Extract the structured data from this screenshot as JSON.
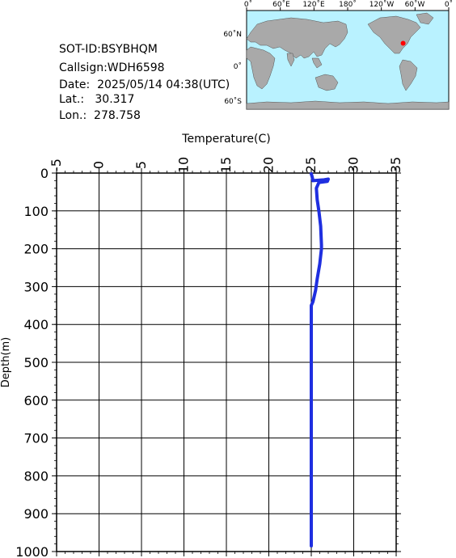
{
  "meta": {
    "sot_id": "SOT-ID:BSYBHQM",
    "callsign": "Callsign:WDH6598",
    "date": "Date:  2025/05/14 04:38(UTC)",
    "lat": "Lat.:   30.317",
    "lon": "Lon.:  278.758"
  },
  "map": {
    "lon_labels": [
      "0˚",
      "60˚E",
      "120˚E",
      "180˚",
      "120˚W",
      "60˚W",
      "0˚"
    ],
    "lat_labels": [
      "60˚N",
      "0˚",
      "60˚S"
    ],
    "marker": {
      "lat": 30.317,
      "lon": 278.758
    },
    "ocean_color": "#b9f2ff",
    "land_color": "#a9a9a9",
    "marker_color": "#ff0000"
  },
  "chart_data": {
    "type": "line",
    "title": "",
    "xlabel": "Temperature(C)",
    "ylabel": "Depth(m)",
    "xlim": [
      -5,
      35
    ],
    "ylim": [
      0,
      1000
    ],
    "y_inverted": true,
    "x_axis_position": "top",
    "grid": true,
    "x_ticks": [
      "-5",
      "0",
      "5",
      "10",
      "15",
      "20",
      "25",
      "30",
      "35"
    ],
    "y_ticks": [
      "0",
      "100",
      "200",
      "300",
      "400",
      "500",
      "600",
      "700",
      "800",
      "900",
      "1000"
    ],
    "series_color": "#1f2fe0",
    "series": [
      {
        "x": [
          25.0,
          25.1,
          25.2,
          26.5,
          27.0,
          26.9,
          25.9,
          25.6,
          25.7,
          25.9,
          26.1,
          26.2,
          26.2,
          26.0,
          25.7,
          25.5,
          25.2,
          25.0,
          25.0,
          25.0,
          25.0,
          25.0,
          25.0,
          25.0,
          25.0,
          25.0,
          25.0
        ],
        "y": [
          2,
          10,
          20,
          18,
          16,
          22,
          25,
          40,
          70,
          100,
          140,
          190,
          200,
          240,
          280,
          310,
          340,
          350,
          400,
          500,
          600,
          700,
          800,
          900,
          950,
          975,
          985
        ]
      }
    ]
  }
}
